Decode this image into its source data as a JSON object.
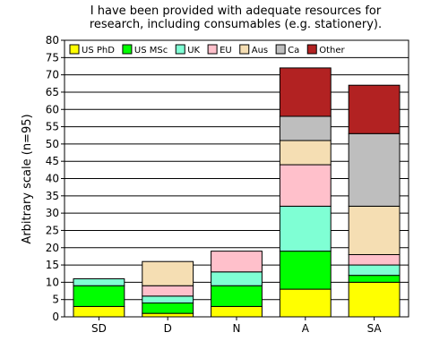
{
  "chart_data": {
    "type": "bar",
    "stacked": true,
    "title_lines": [
      "I have been provided with adequate resources for",
      "research, including consumables (e.g. stationery)."
    ],
    "xlabel": "",
    "ylabel": "Arbitrary scale (n=95)",
    "ylim": [
      0,
      80
    ],
    "ytick_step": 5,
    "grid": "horizontal",
    "legend_position": "top",
    "categories": [
      "SD",
      "D",
      "N",
      "A",
      "SA"
    ],
    "series": [
      {
        "name": "US PhD",
        "color": "#ffff00",
        "values": [
          3,
          1,
          3,
          8,
          10
        ]
      },
      {
        "name": "US MSc",
        "color": "#00ff00",
        "values": [
          6,
          3,
          6,
          11,
          2
        ]
      },
      {
        "name": "UK",
        "color": "#7fffd4",
        "values": [
          2,
          2,
          4,
          13,
          3
        ]
      },
      {
        "name": "EU",
        "color": "#ffc0cb",
        "values": [
          0,
          3,
          6,
          12,
          3
        ]
      },
      {
        "name": "Aus",
        "color": "#f5deb3",
        "values": [
          0,
          7,
          0,
          7,
          14
        ]
      },
      {
        "name": "Ca",
        "color": "#bebebe",
        "values": [
          0,
          0,
          0,
          7,
          21
        ]
      },
      {
        "name": "Other",
        "color": "#b22222",
        "values": [
          0,
          0,
          0,
          14,
          14
        ]
      }
    ]
  }
}
